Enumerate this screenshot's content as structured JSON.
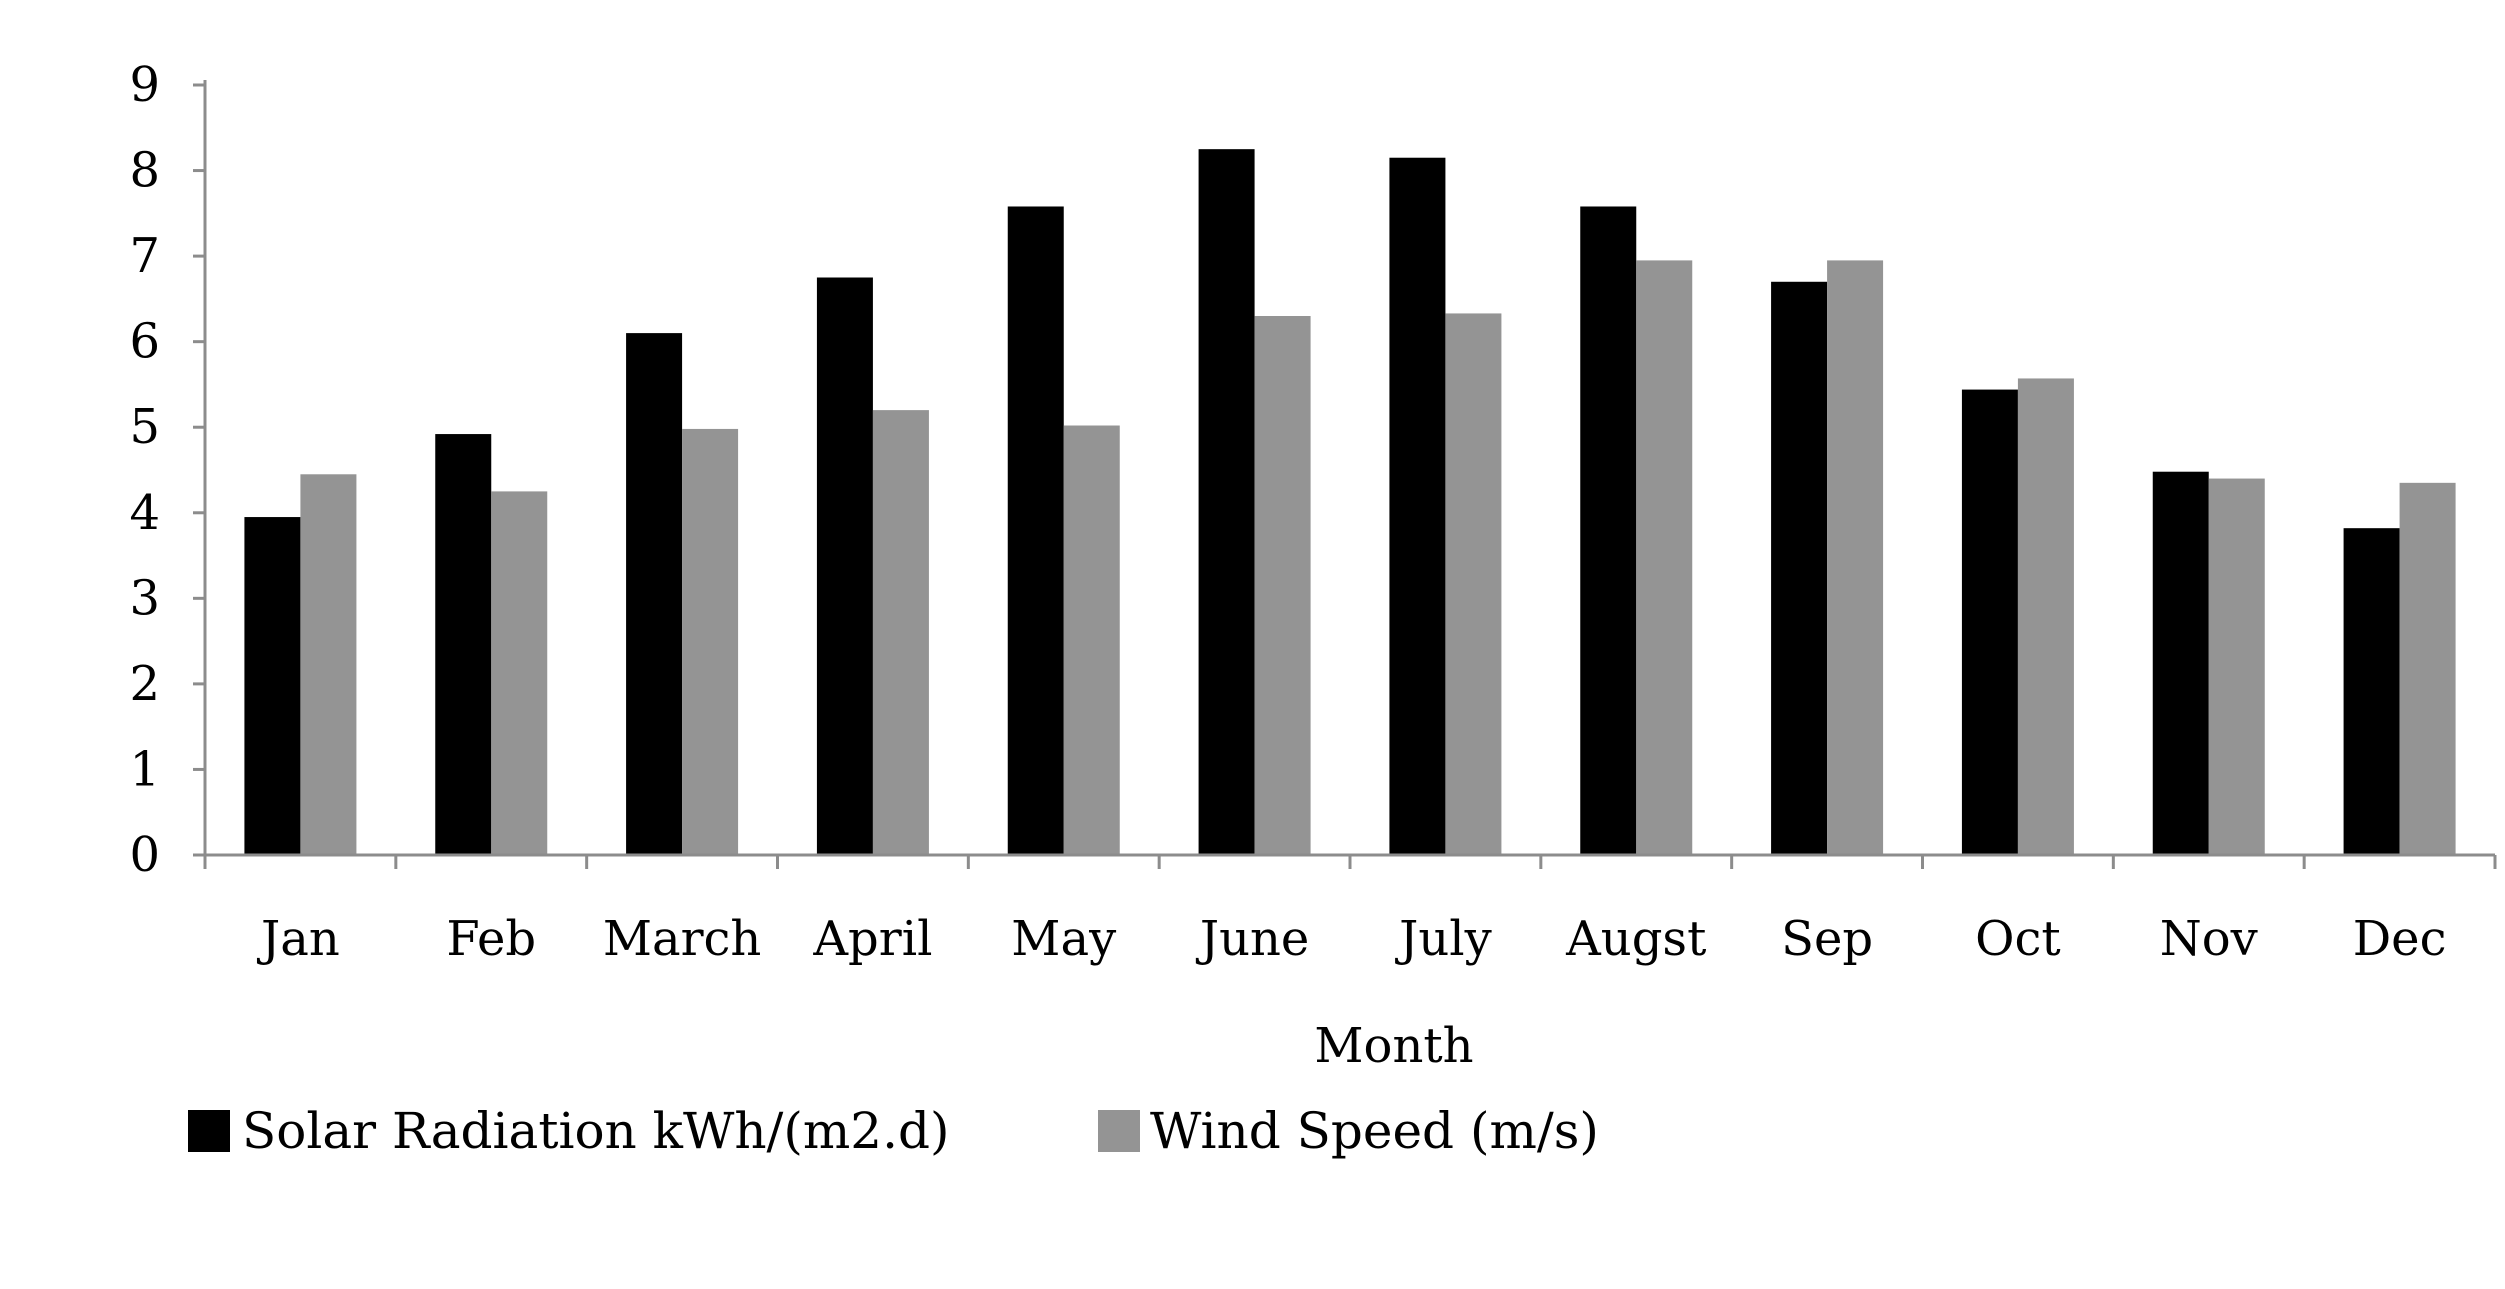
{
  "chart_data": {
    "type": "bar",
    "categories": [
      "Jan",
      "Feb",
      "March",
      "April",
      "May",
      "June",
      "July",
      "Augst",
      "Sep",
      "Oct",
      "Nov",
      "Dec"
    ],
    "series": [
      {
        "name": "Solar Radiation kWh/(m2.d)",
        "color": "#000000",
        "values": [
          3.95,
          4.92,
          6.1,
          6.75,
          7.58,
          8.25,
          8.15,
          7.58,
          6.7,
          5.44,
          4.48,
          3.82
        ]
      },
      {
        "name": "Wind Speed (m/s)",
        "color": "#949494",
        "values": [
          4.45,
          4.25,
          4.98,
          5.2,
          5.02,
          6.3,
          6.33,
          6.95,
          6.95,
          5.57,
          4.4,
          4.35
        ]
      }
    ],
    "xlabel": "Month",
    "ylabel": "",
    "ylim": [
      0,
      9
    ],
    "yticks": [
      "0",
      "1",
      "2",
      "3",
      "4",
      "5",
      "6",
      "7",
      "8",
      "9"
    ],
    "grid": false,
    "legend_position": "bottom-left"
  }
}
